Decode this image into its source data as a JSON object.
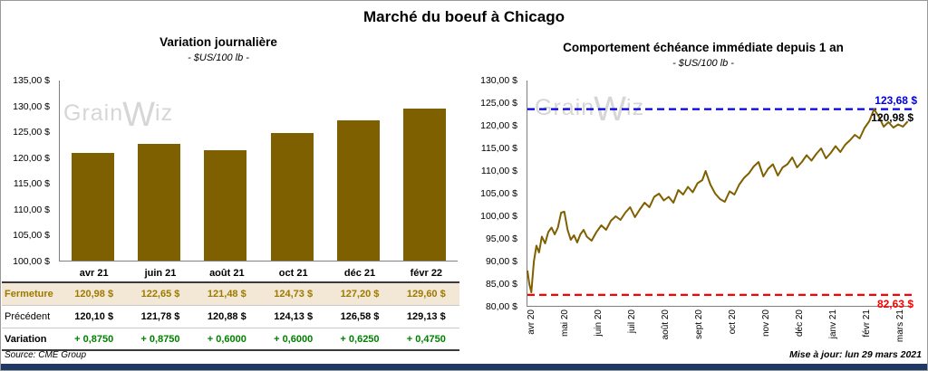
{
  "page": {
    "title": "Marché du boeuf à Chicago",
    "source": "Source: CME Group",
    "updated": "Mise à jour: lun 29 mars 2021",
    "watermark": {
      "pre": "Grain",
      "mid": "W",
      "post": "iz"
    }
  },
  "colors": {
    "bar": "#7F6000",
    "line": "#7F6000",
    "fermeture_text": "#9C7A00",
    "variation_text": "#008000",
    "resistance": "#0000E0",
    "support": "#FF0000",
    "highlight_row_bg": "#F2E8D5",
    "footer_bar": "#1F3864"
  },
  "chart_data": [
    {
      "type": "bar",
      "title": "Variation journalière",
      "subtitle": "- $US/100 lb -",
      "categories": [
        "avr 21",
        "juin 21",
        "août 21",
        "oct 21",
        "déc 21",
        "févr 22"
      ],
      "values": [
        120.98,
        122.65,
        121.48,
        124.73,
        127.2,
        129.6
      ],
      "xlabel": "",
      "ylabel": "",
      "ylim": [
        100,
        135
      ],
      "ytick_step": 5,
      "ytick_labels": [
        "135,00 $",
        "130,00 $",
        "125,00 $",
        "120,00 $",
        "115,00 $",
        "110,00 $",
        "105,00 $",
        "100,00 $"
      ],
      "grid": false,
      "legend": false
    },
    {
      "type": "line",
      "title": "Comportement échéance immédiate depuis 1 an",
      "subtitle": "- $US/100 lb -",
      "x_labels": [
        "avr 20",
        "mai 20",
        "juin 20",
        "juil 20",
        "août 20",
        "sept 20",
        "oct 20",
        "nov 20",
        "déc 20",
        "janv 21",
        "févr 21",
        "mars 21"
      ],
      "x_unit": "months since avr 2020",
      "ylim": [
        80,
        130
      ],
      "ytick_step": 5,
      "ytick_labels": [
        "130,00 $",
        "125,00 $",
        "120,00 $",
        "115,00 $",
        "110,00 $",
        "105,00 $",
        "100,00 $",
        "95,00 $",
        "90,00 $",
        "85,00 $",
        "80,00 $"
      ],
      "grid": false,
      "legend": false,
      "annotations": {
        "high": {
          "value": 123.68,
          "label": "123,68 $"
        },
        "last": {
          "value": 120.98,
          "label": "120,98 $"
        },
        "low": {
          "value": 82.63,
          "label": "82,63 $"
        }
      },
      "points": [
        [
          0,
          88
        ],
        [
          0.06,
          85
        ],
        [
          0.12,
          83.2
        ],
        [
          0.2,
          90
        ],
        [
          0.28,
          93.5
        ],
        [
          0.36,
          92
        ],
        [
          0.45,
          95.5
        ],
        [
          0.55,
          94
        ],
        [
          0.65,
          96.5
        ],
        [
          0.75,
          97.5
        ],
        [
          0.85,
          96
        ],
        [
          0.95,
          97.5
        ],
        [
          1.05,
          100.8
        ],
        [
          1.15,
          101
        ],
        [
          1.25,
          97
        ],
        [
          1.35,
          94.8
        ],
        [
          1.45,
          95.8
        ],
        [
          1.55,
          94.2
        ],
        [
          1.65,
          96
        ],
        [
          1.75,
          97
        ],
        [
          1.85,
          95.5
        ],
        [
          2,
          94.6
        ],
        [
          2.15,
          96.5
        ],
        [
          2.3,
          98
        ],
        [
          2.45,
          97
        ],
        [
          2.6,
          99
        ],
        [
          2.75,
          100
        ],
        [
          2.9,
          99.2
        ],
        [
          3.05,
          100.8
        ],
        [
          3.2,
          102
        ],
        [
          3.35,
          99.8
        ],
        [
          3.5,
          101.5
        ],
        [
          3.65,
          103
        ],
        [
          3.8,
          102
        ],
        [
          3.95,
          104.3
        ],
        [
          4.1,
          105
        ],
        [
          4.25,
          103.5
        ],
        [
          4.4,
          104.3
        ],
        [
          4.55,
          103
        ],
        [
          4.7,
          105.8
        ],
        [
          4.85,
          104.8
        ],
        [
          5,
          106.5
        ],
        [
          5.15,
          105.3
        ],
        [
          5.3,
          107.3
        ],
        [
          5.45,
          108
        ],
        [
          5.55,
          110
        ],
        [
          5.7,
          107
        ],
        [
          5.85,
          105
        ],
        [
          6,
          103.8
        ],
        [
          6.15,
          103.2
        ],
        [
          6.3,
          105.5
        ],
        [
          6.45,
          104.8
        ],
        [
          6.6,
          107
        ],
        [
          6.75,
          108.5
        ],
        [
          6.9,
          109.5
        ],
        [
          7.05,
          111
        ],
        [
          7.2,
          112
        ],
        [
          7.35,
          108.8
        ],
        [
          7.5,
          110.5
        ],
        [
          7.65,
          111.5
        ],
        [
          7.8,
          109
        ],
        [
          7.95,
          110.8
        ],
        [
          8.1,
          111.5
        ],
        [
          8.25,
          113
        ],
        [
          8.4,
          110.8
        ],
        [
          8.55,
          112
        ],
        [
          8.7,
          113.5
        ],
        [
          8.85,
          112.3
        ],
        [
          9,
          113.8
        ],
        [
          9.15,
          115
        ],
        [
          9.3,
          112.8
        ],
        [
          9.45,
          114
        ],
        [
          9.6,
          115.5
        ],
        [
          9.75,
          114.2
        ],
        [
          9.9,
          115.8
        ],
        [
          10.05,
          116.8
        ],
        [
          10.2,
          118
        ],
        [
          10.35,
          117.2
        ],
        [
          10.5,
          119.5
        ],
        [
          10.65,
          121
        ],
        [
          10.8,
          123.68
        ],
        [
          10.95,
          122
        ],
        [
          11.1,
          119.8
        ],
        [
          11.25,
          120.8
        ],
        [
          11.4,
          119.6
        ],
        [
          11.55,
          120.3
        ],
        [
          11.7,
          119.8
        ],
        [
          11.85,
          120.98
        ]
      ]
    }
  ],
  "table": {
    "columns": [
      "avr 21",
      "juin 21",
      "août 21",
      "oct 21",
      "déc 21",
      "févr 22"
    ],
    "rows": [
      {
        "key": "fermeture",
        "label": "Fermeture",
        "values": [
          "120,98  $",
          "122,65  $",
          "121,48  $",
          "124,73  $",
          "127,20  $",
          "129,60  $"
        ]
      },
      {
        "key": "precedent",
        "label": "Précédent",
        "values": [
          "120,10  $",
          "121,78  $",
          "120,88  $",
          "124,13  $",
          "126,58  $",
          "129,13  $"
        ]
      },
      {
        "key": "variation",
        "label": "Variation",
        "values": [
          "+ 0,8750",
          "+ 0,8750",
          "+ 0,6000",
          "+ 0,6000",
          "+ 0,6250",
          "+ 0,4750"
        ]
      }
    ]
  }
}
